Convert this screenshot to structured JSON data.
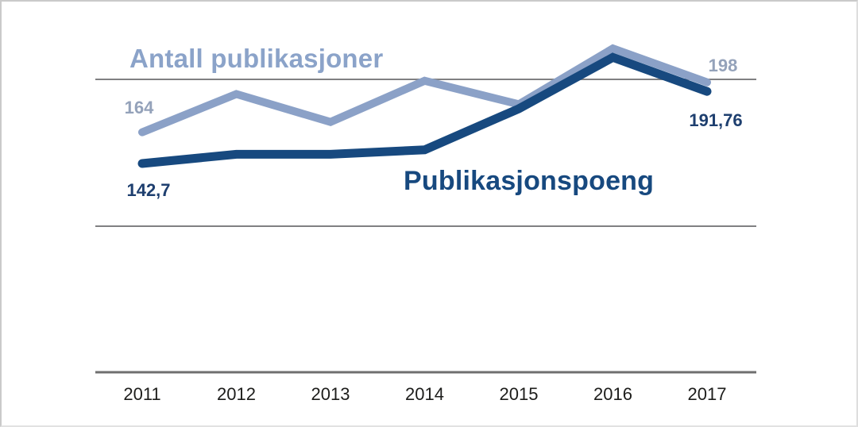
{
  "chart_data": {
    "type": "line",
    "title": "",
    "categories": [
      "2011",
      "2012",
      "2013",
      "2014",
      "2015",
      "2016",
      "2017"
    ],
    "series": [
      {
        "name": "Antall publikasjoner",
        "values": [
          164,
          190,
          171,
          199,
          183,
          221,
          198
        ],
        "color": "#8ba1c7",
        "label_color": "#8ba3c9",
        "point_label_color": "#94a2ba",
        "point_labels": {
          "first": "164",
          "last": "198"
        }
      },
      {
        "name": "Publikasjonspoeng",
        "values": [
          142.7,
          149,
          149,
          152,
          180,
          215,
          191.76
        ],
        "color": "#17497f",
        "label_color": "#17497f",
        "point_label_color": "#1e3f6f",
        "point_labels": {
          "first": "142,7",
          "last": "191,76"
        }
      }
    ],
    "xlabel": "",
    "ylabel": "",
    "grid": "horizontal-partial",
    "legend_position": "inline-next-to-lines",
    "gridline_color": "#808082",
    "axis_color": "#6f6f6f"
  }
}
